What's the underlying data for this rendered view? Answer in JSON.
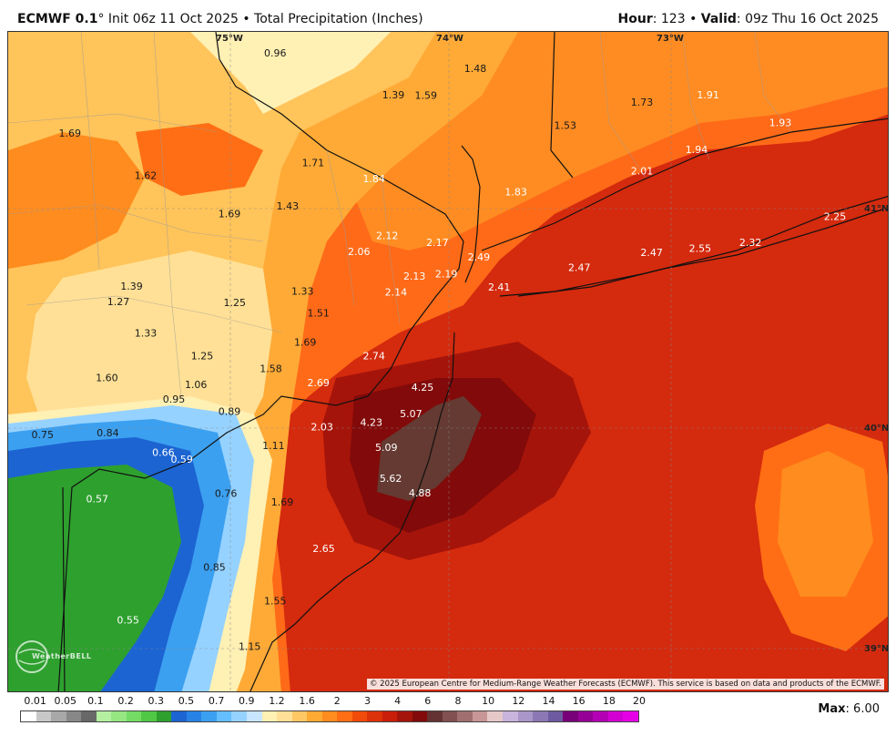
{
  "header": {
    "model": "ECMWF 0.1",
    "degree": "°",
    "init": " Init 06z 11 Oct 2025 • Total Precipitation (Inches)",
    "hour_label": "Hour",
    "hour_value": ": 123 • ",
    "valid_label": "Valid",
    "valid_value": ": 09z Thu 16 Oct 2025"
  },
  "map": {
    "grid_labels": {
      "lon_75": "75°W",
      "lon_74": "74°W",
      "lon_73": "73°W",
      "lat_41": "41°N",
      "lat_40": "40°N",
      "lat_39": "39°N"
    },
    "point_values": [
      {
        "v": "0.96",
        "lx": 0.303,
        "ly": 0.032,
        "c": "dark"
      },
      {
        "v": "1.48",
        "lx": 0.53,
        "ly": 0.055,
        "c": "dark"
      },
      {
        "v": "1.39",
        "lx": 0.437,
        "ly": 0.095,
        "c": "dark"
      },
      {
        "v": "1.59",
        "lx": 0.474,
        "ly": 0.096,
        "c": "dark"
      },
      {
        "v": "1.73",
        "lx": 0.719,
        "ly": 0.106,
        "c": "dark"
      },
      {
        "v": "1.91",
        "lx": 0.794,
        "ly": 0.095,
        "c": "light"
      },
      {
        "v": "1.53",
        "lx": 0.632,
        "ly": 0.141,
        "c": "dark"
      },
      {
        "v": "1.93",
        "lx": 0.876,
        "ly": 0.137,
        "c": "light"
      },
      {
        "v": "1.69",
        "lx": 0.07,
        "ly": 0.153,
        "c": "dark"
      },
      {
        "v": "1.94",
        "lx": 0.781,
        "ly": 0.178,
        "c": "light"
      },
      {
        "v": "1.71",
        "lx": 0.346,
        "ly": 0.198,
        "c": "dark"
      },
      {
        "v": "2.01",
        "lx": 0.719,
        "ly": 0.21,
        "c": "light"
      },
      {
        "v": "1.62",
        "lx": 0.156,
        "ly": 0.217,
        "c": "dark"
      },
      {
        "v": "1.84",
        "lx": 0.415,
        "ly": 0.222,
        "c": "light"
      },
      {
        "v": "1.83",
        "lx": 0.576,
        "ly": 0.242,
        "c": "light"
      },
      {
        "v": "1.43",
        "lx": 0.317,
        "ly": 0.263,
        "c": "dark"
      },
      {
        "v": "1.69",
        "lx": 0.251,
        "ly": 0.275,
        "c": "dark"
      },
      {
        "v": "2.25",
        "lx": 0.938,
        "ly": 0.279,
        "c": "light"
      },
      {
        "v": "2.12",
        "lx": 0.43,
        "ly": 0.308,
        "c": "light"
      },
      {
        "v": "2.17",
        "lx": 0.487,
        "ly": 0.318,
        "c": "light"
      },
      {
        "v": "2.32",
        "lx": 0.842,
        "ly": 0.318,
        "c": "light"
      },
      {
        "v": "2.06",
        "lx": 0.398,
        "ly": 0.332,
        "c": "light"
      },
      {
        "v": "2.47",
        "lx": 0.73,
        "ly": 0.333,
        "c": "light"
      },
      {
        "v": "2.55",
        "lx": 0.785,
        "ly": 0.327,
        "c": "light"
      },
      {
        "v": "2.49",
        "lx": 0.534,
        "ly": 0.34,
        "c": "light"
      },
      {
        "v": "2.47",
        "lx": 0.648,
        "ly": 0.356,
        "c": "light"
      },
      {
        "v": "2.13",
        "lx": 0.461,
        "ly": 0.369,
        "c": "light"
      },
      {
        "v": "2.19",
        "lx": 0.497,
        "ly": 0.366,
        "c": "light"
      },
      {
        "v": "1.39",
        "lx": 0.14,
        "ly": 0.384,
        "c": "dark"
      },
      {
        "v": "2.41",
        "lx": 0.557,
        "ly": 0.386,
        "c": "light"
      },
      {
        "v": "2.14",
        "lx": 0.44,
        "ly": 0.393,
        "c": "light"
      },
      {
        "v": "1.33",
        "lx": 0.334,
        "ly": 0.392,
        "c": "dark"
      },
      {
        "v": "1.27",
        "lx": 0.125,
        "ly": 0.408,
        "c": "dark"
      },
      {
        "v": "1.25",
        "lx": 0.257,
        "ly": 0.409,
        "c": "dark"
      },
      {
        "v": "1.51",
        "lx": 0.352,
        "ly": 0.425,
        "c": "dark"
      },
      {
        "v": "1.33",
        "lx": 0.156,
        "ly": 0.455,
        "c": "dark"
      },
      {
        "v": "1.69",
        "lx": 0.337,
        "ly": 0.469,
        "c": "dark"
      },
      {
        "v": "1.25",
        "lx": 0.22,
        "ly": 0.49,
        "c": "dark"
      },
      {
        "v": "2.74",
        "lx": 0.415,
        "ly": 0.49,
        "c": "light"
      },
      {
        "v": "1.58",
        "lx": 0.298,
        "ly": 0.509,
        "c": "dark"
      },
      {
        "v": "1.60",
        "lx": 0.112,
        "ly": 0.523,
        "c": "dark"
      },
      {
        "v": "2.69",
        "lx": 0.352,
        "ly": 0.53,
        "c": "light"
      },
      {
        "v": "1.06",
        "lx": 0.213,
        "ly": 0.533,
        "c": "dark"
      },
      {
        "v": "4.25",
        "lx": 0.47,
        "ly": 0.537,
        "c": "light"
      },
      {
        "v": "0.95",
        "lx": 0.188,
        "ly": 0.555,
        "c": "dark"
      },
      {
        "v": "0.89",
        "lx": 0.251,
        "ly": 0.574,
        "c": "dark"
      },
      {
        "v": "5.07",
        "lx": 0.457,
        "ly": 0.577,
        "c": "light"
      },
      {
        "v": "4.23",
        "lx": 0.412,
        "ly": 0.59,
        "c": "light"
      },
      {
        "v": "2.03",
        "lx": 0.356,
        "ly": 0.597,
        "c": "light"
      },
      {
        "v": "0.75",
        "lx": 0.039,
        "ly": 0.609,
        "c": "dark"
      },
      {
        "v": "0.84",
        "lx": 0.113,
        "ly": 0.606,
        "c": "dark"
      },
      {
        "v": "1.11",
        "lx": 0.301,
        "ly": 0.625,
        "c": "dark"
      },
      {
        "v": "5.09",
        "lx": 0.429,
        "ly": 0.628,
        "c": "light"
      },
      {
        "v": "0.66",
        "lx": 0.176,
        "ly": 0.636,
        "c": "light"
      },
      {
        "v": "0.59",
        "lx": 0.197,
        "ly": 0.646,
        "c": "light"
      },
      {
        "v": "5.62",
        "lx": 0.434,
        "ly": 0.675,
        "c": "light"
      },
      {
        "v": "4.88",
        "lx": 0.467,
        "ly": 0.697,
        "c": "light"
      },
      {
        "v": "0.76",
        "lx": 0.247,
        "ly": 0.698,
        "c": "dark"
      },
      {
        "v": "0.57",
        "lx": 0.101,
        "ly": 0.706,
        "c": "light"
      },
      {
        "v": "1.69",
        "lx": 0.311,
        "ly": 0.711,
        "c": "dark"
      },
      {
        "v": "2.65",
        "lx": 0.358,
        "ly": 0.781,
        "c": "light"
      },
      {
        "v": "0.85",
        "lx": 0.234,
        "ly": 0.809,
        "c": "dark"
      },
      {
        "v": "1.55",
        "lx": 0.303,
        "ly": 0.86,
        "c": "dark"
      },
      {
        "v": "0.55",
        "lx": 0.136,
        "ly": 0.889,
        "c": "light"
      },
      {
        "v": "1.15",
        "lx": 0.274,
        "ly": 0.929,
        "c": "dark"
      }
    ],
    "copyright": "© 2025 European Centre for Medium-Range Weather Forecasts (ECMWF). This service is based on data and products of the ECMWF.",
    "logo_text": "WeatherBELL"
  },
  "colorbar": {
    "labels": [
      "0.01",
      "0.05",
      "0.1",
      "0.2",
      "0.3",
      "0.5",
      "0.7",
      "0.9",
      "1.2",
      "1.6",
      "2",
      "3",
      "4",
      "6",
      "8",
      "10",
      "12",
      "14",
      "16",
      "18",
      "20"
    ],
    "colors": [
      "#ffffff",
      "#c8c8c8",
      "#a8a8a8",
      "#888888",
      "#686868",
      "#b4f0a0",
      "#96e682",
      "#74dc64",
      "#50c846",
      "#2ea02e",
      "#1c64d2",
      "#2882e6",
      "#3ca0f0",
      "#64beff",
      "#96d2ff",
      "#c8e6ff",
      "#fff0b4",
      "#ffe096",
      "#ffc864",
      "#ffaa32",
      "#ff8c1e",
      "#ff6e14",
      "#f04b0a",
      "#dc320a",
      "#c81e0a",
      "#a5140a",
      "#820a0a",
      "#643232",
      "#825050",
      "#a07070",
      "#c89696",
      "#e6c8c8",
      "#c8b4dc",
      "#aa96c8",
      "#8c78b4",
      "#6e5aa0",
      "#780078",
      "#960096",
      "#b400b4",
      "#d200d2",
      "#e600e6"
    ],
    "max_label": "Max",
    "max_value": ": 6.00"
  }
}
